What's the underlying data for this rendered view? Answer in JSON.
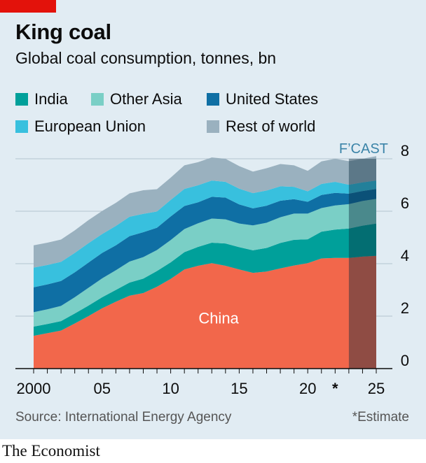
{
  "header": {
    "title": "King coal",
    "subtitle": "Global coal consumption, tonnes, bn"
  },
  "legend": {
    "india": "India",
    "other_asia": "Other Asia",
    "united_states": "United States",
    "european_union": "European Union",
    "rest_of_world": "Rest of world"
  },
  "annotations": {
    "forecast_label": "F’CAST",
    "series_label_china": "China",
    "estimate_marker": "*"
  },
  "footer": {
    "source": "Source: International Energy Agency",
    "footnote": "*Estimate",
    "brand": "The Economist"
  },
  "colors": {
    "china": "#f2674b",
    "india": "#00a09a",
    "other_asia": "#7acfc6",
    "united_states": "#0f6fa4",
    "european_union": "#38c0de",
    "rest_of_world": "#9ab1bf",
    "forecast_shade": "rgba(8,40,60,0.42)",
    "forecast_label": "#3b84a8",
    "background": "#e1ecf3",
    "brand_red": "#e3120b"
  },
  "chart_data": {
    "type": "area",
    "stacked": true,
    "x": [
      2000,
      2001,
      2002,
      2003,
      2004,
      2005,
      2006,
      2007,
      2008,
      2009,
      2010,
      2011,
      2012,
      2013,
      2014,
      2015,
      2016,
      2017,
      2018,
      2019,
      2020,
      2021,
      2022,
      2023,
      2024,
      2025
    ],
    "series": [
      {
        "name": "China",
        "key": "china",
        "values": [
          1.25,
          1.35,
          1.45,
          1.72,
          2.0,
          2.3,
          2.55,
          2.78,
          2.88,
          3.12,
          3.42,
          3.78,
          3.92,
          4.02,
          3.92,
          3.78,
          3.65,
          3.7,
          3.82,
          3.93,
          4.02,
          4.2,
          4.22,
          4.22,
          4.27,
          4.3
        ]
      },
      {
        "name": "India",
        "key": "india",
        "values": [
          0.35,
          0.35,
          0.36,
          0.38,
          0.4,
          0.42,
          0.45,
          0.5,
          0.55,
          0.6,
          0.63,
          0.66,
          0.72,
          0.78,
          0.85,
          0.85,
          0.86,
          0.9,
          0.97,
          0.98,
          0.91,
          1.02,
          1.08,
          1.12,
          1.18,
          1.23
        ]
      },
      {
        "name": "Other Asia",
        "key": "other_asia",
        "values": [
          0.55,
          0.56,
          0.58,
          0.62,
          0.68,
          0.72,
          0.75,
          0.8,
          0.82,
          0.8,
          0.85,
          0.88,
          0.9,
          0.92,
          0.92,
          0.9,
          0.95,
          0.96,
          0.98,
          1.0,
          0.98,
          0.9,
          0.92,
          0.93,
          0.94,
          0.94
        ]
      },
      {
        "name": "United States",
        "key": "united_states",
        "values": [
          0.95,
          0.95,
          0.95,
          0.95,
          0.96,
          0.97,
          0.95,
          0.97,
          0.95,
          0.85,
          0.9,
          0.88,
          0.8,
          0.83,
          0.83,
          0.73,
          0.65,
          0.65,
          0.63,
          0.55,
          0.45,
          0.5,
          0.48,
          0.4,
          0.38,
          0.38
        ]
      },
      {
        "name": "European Union",
        "key": "european_union",
        "values": [
          0.75,
          0.74,
          0.73,
          0.74,
          0.74,
          0.72,
          0.74,
          0.74,
          0.7,
          0.62,
          0.63,
          0.65,
          0.65,
          0.62,
          0.6,
          0.6,
          0.58,
          0.58,
          0.55,
          0.47,
          0.4,
          0.42,
          0.42,
          0.34,
          0.33,
          0.32
        ]
      },
      {
        "name": "Rest of world",
        "key": "rest_of_world",
        "values": [
          0.85,
          0.85,
          0.85,
          0.86,
          0.88,
          0.88,
          0.88,
          0.89,
          0.9,
          0.85,
          0.85,
          0.9,
          0.88,
          0.88,
          0.88,
          0.86,
          0.82,
          0.85,
          0.85,
          0.82,
          0.78,
          0.86,
          0.88,
          0.9,
          0.9,
          0.93
        ]
      }
    ],
    "ylim": [
      0,
      8
    ],
    "yticks": [
      "0",
      "2",
      "4",
      "6",
      "8"
    ],
    "xticks": [
      {
        "x": 2000,
        "label": "2000"
      },
      {
        "x": 2005,
        "label": "05"
      },
      {
        "x": 2010,
        "label": "10"
      },
      {
        "x": 2015,
        "label": "15"
      },
      {
        "x": 2020,
        "label": "20"
      },
      {
        "x": 2025,
        "label": "25"
      }
    ],
    "estimate_year": 2022,
    "forecast_range": [
      2023,
      2025
    ],
    "grid": true,
    "legend_position": "top"
  }
}
